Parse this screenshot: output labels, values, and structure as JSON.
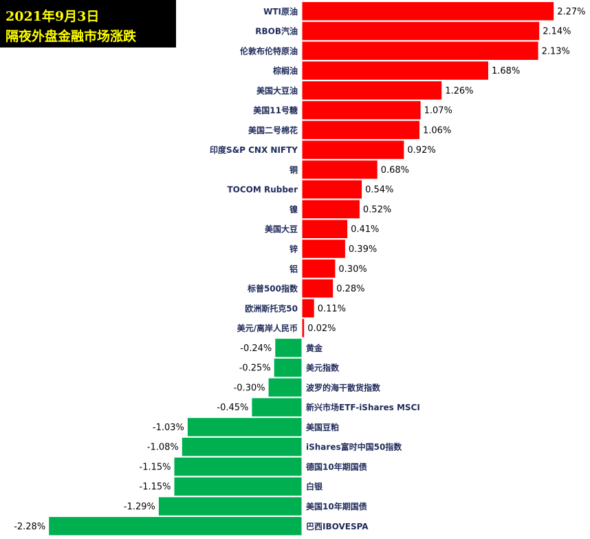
{
  "title": {
    "line1": "2021年9月3日",
    "line2": "隔夜外盘金融市场涨跌"
  },
  "colors": {
    "positive": "#ff0000",
    "negative": "#00b050",
    "title_bg": "#000000",
    "title_text": "#ffff00",
    "label_text": "#1f2a5a"
  },
  "chart_data": {
    "type": "bar",
    "orientation": "horizontal",
    "unit": "%",
    "sorted": "descending",
    "categories": [
      "WTI原油",
      "RBOB汽油",
      "伦敦布伦特原油",
      "棕榈油",
      "美国大豆油",
      "美国11号糖",
      "美国二号棉花",
      "印度S&P CNX NIFTY",
      "铜",
      "TOCOM Rubber",
      "镍",
      "美国大豆",
      "锌",
      "铝",
      "标普500指数",
      "欧洲斯托克50",
      "美元/离岸人民币",
      "黄金",
      "美元指数",
      "波罗的海干散货指数",
      "新兴市场ETF-iShares MSCI",
      "美国豆粕",
      "iShares富时中国50指数",
      "德国10年期国债",
      "白银",
      "美国10年期国债",
      "巴西IBOVESPA"
    ],
    "values": [
      2.27,
      2.14,
      2.13,
      1.68,
      1.26,
      1.07,
      1.06,
      0.92,
      0.68,
      0.54,
      0.52,
      0.41,
      0.39,
      0.3,
      0.28,
      0.11,
      0.02,
      -0.24,
      -0.25,
      -0.3,
      -0.45,
      -1.03,
      -1.08,
      -1.15,
      -1.15,
      -1.29,
      -2.28
    ],
    "value_labels": [
      "2.27%",
      "2.14%",
      "2.13%",
      "1.68%",
      "1.26%",
      "1.07%",
      "1.06%",
      "0.92%",
      "0.68%",
      "0.54%",
      "0.52%",
      "0.41%",
      "0.39%",
      "0.30%",
      "0.28%",
      "0.11%",
      "0.02%",
      "-0.24%",
      "-0.25%",
      "-0.30%",
      "-0.45%",
      "-1.03%",
      "-1.08%",
      "-1.15%",
      "-1.15%",
      "-1.29%",
      "-2.28%"
    ],
    "xlim": [
      -2.28,
      2.27
    ],
    "grid": false,
    "legend": "none"
  }
}
